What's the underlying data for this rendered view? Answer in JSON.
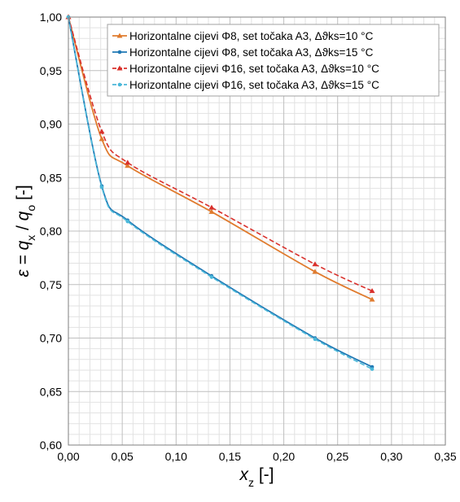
{
  "chart_data": {
    "type": "line",
    "xlabel": "x_z [-]",
    "ylabel": "ε = q_x / q_o [-]",
    "xlim": [
      0,
      0.35
    ],
    "ylim": [
      0.6,
      1.0
    ],
    "x_ticks": [
      "0,00",
      "0,05",
      "0,10",
      "0,15",
      "0,20",
      "0,25",
      "0,30",
      "0,35"
    ],
    "y_ticks": [
      "0,60",
      "0,65",
      "0,70",
      "0,75",
      "0,80",
      "0,85",
      "0,90",
      "0,95",
      "1,00"
    ],
    "grid": true,
    "legend_position": "top-right",
    "series": [
      {
        "name": "Horizontalne cijevi Φ8, set točaka A3, Δϑks=10 °C",
        "color": "#E07B2E",
        "dash": "solid",
        "marker": "triangle",
        "points": [
          [
            0.0,
            1.0
          ],
          [
            0.031,
            0.886
          ],
          [
            0.055,
            0.861
          ],
          [
            0.133,
            0.818
          ],
          [
            0.229,
            0.762
          ],
          [
            0.282,
            0.736
          ]
        ]
      },
      {
        "name": "Horizontalne cijevi Φ8, set točaka A3, Δϑks=15 °C",
        "color": "#1F78B4",
        "dash": "solid",
        "marker": "circle",
        "points": [
          [
            0.0,
            1.0
          ],
          [
            0.031,
            0.842
          ],
          [
            0.055,
            0.81
          ],
          [
            0.133,
            0.758
          ],
          [
            0.229,
            0.7
          ],
          [
            0.282,
            0.673
          ]
        ]
      },
      {
        "name": "Horizontalne cijevi Φ16, set točaka A3, Δϑks=10 °C",
        "color": "#D9302B",
        "dash": "dashed",
        "marker": "triangle",
        "points": [
          [
            0.0,
            1.0
          ],
          [
            0.031,
            0.893
          ],
          [
            0.055,
            0.864
          ],
          [
            0.133,
            0.822
          ],
          [
            0.229,
            0.769
          ],
          [
            0.282,
            0.744
          ]
        ]
      },
      {
        "name": "Horizontalne cijevi Φ16, set točaka A3, Δϑks=15 °C",
        "color": "#4BB8D9",
        "dash": "dashed",
        "marker": "circle",
        "points": [
          [
            0.0,
            1.0
          ],
          [
            0.031,
            0.841
          ],
          [
            0.055,
            0.809
          ],
          [
            0.133,
            0.757
          ],
          [
            0.229,
            0.699
          ],
          [
            0.282,
            0.671
          ]
        ]
      }
    ]
  }
}
